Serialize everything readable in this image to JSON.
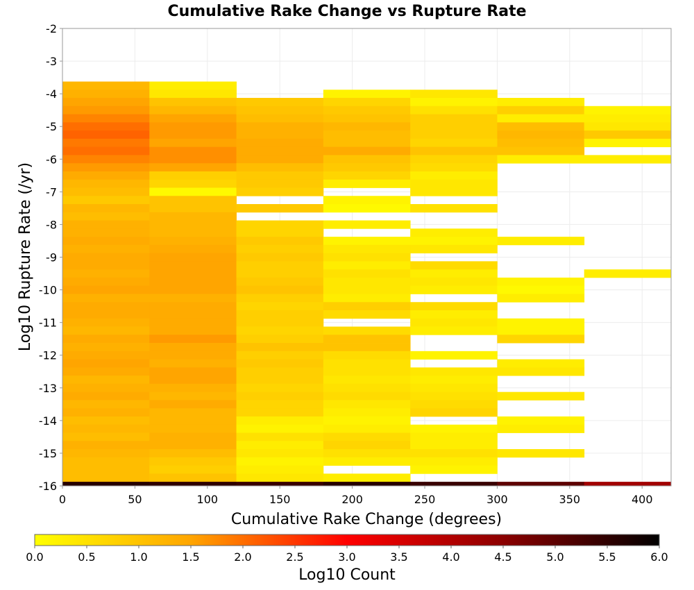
{
  "chart_data": {
    "type": "heatmap",
    "title": "Cumulative Rake Change vs Rupture Rate",
    "xlabel": "Cumulative Rake Change (degrees)",
    "ylabel": "Log10 Rupture Rate (/yr)",
    "xlim": [
      0,
      420
    ],
    "ylim": [
      -16,
      -2
    ],
    "x_ticks": [
      0,
      50,
      100,
      150,
      200,
      250,
      300,
      350,
      400
    ],
    "y_ticks": [
      -2,
      -3,
      -4,
      -5,
      -6,
      -7,
      -8,
      -9,
      -10,
      -11,
      -12,
      -13,
      -14,
      -15,
      -16
    ],
    "colorbar": {
      "label": "Log10 Count",
      "range": [
        0.0,
        6.0
      ],
      "ticks": [
        "0.0",
        "0.5",
        "1.0",
        "1.5",
        "2.0",
        "2.5",
        "3.0",
        "3.5",
        "4.0",
        "4.5",
        "5.0",
        "5.5",
        "6.0"
      ],
      "colors": [
        "#ffff00",
        "#ffa500",
        "#ff0000",
        "#8b0000",
        "#000000"
      ]
    },
    "bin_width_x": 60,
    "bin_height_y": 0.25,
    "grid": true,
    "columns": [
      {
        "x0": 0,
        "cells": [
          [
            -3.75,
            1.2
          ],
          [
            -4.0,
            1.3
          ],
          [
            -4.25,
            1.5
          ],
          [
            -4.5,
            1.6
          ],
          [
            -4.75,
            1.8
          ],
          [
            -5.0,
            2.0
          ],
          [
            -5.25,
            2.1
          ],
          [
            -5.5,
            1.9
          ],
          [
            -5.75,
            2.0
          ],
          [
            -6.0,
            1.8
          ],
          [
            -6.25,
            1.6
          ],
          [
            -6.5,
            1.4
          ],
          [
            -6.75,
            1.2
          ],
          [
            -7.0,
            1.1
          ],
          [
            -7.25,
            0.9
          ],
          [
            -7.5,
            1.2
          ],
          [
            -7.75,
            1.1
          ],
          [
            -8.0,
            1.3
          ],
          [
            -8.25,
            1.3
          ],
          [
            -8.5,
            1.4
          ],
          [
            -8.75,
            1.3
          ],
          [
            -9.0,
            1.4
          ],
          [
            -9.25,
            1.4
          ],
          [
            -9.5,
            1.3
          ],
          [
            -9.75,
            1.4
          ],
          [
            -10.0,
            1.5
          ],
          [
            -10.25,
            1.3
          ],
          [
            -10.5,
            1.4
          ],
          [
            -10.75,
            1.4
          ],
          [
            -11.0,
            1.3
          ],
          [
            -11.25,
            1.2
          ],
          [
            -11.5,
            1.4
          ],
          [
            -11.75,
            1.3
          ],
          [
            -12.0,
            1.4
          ],
          [
            -12.25,
            1.5
          ],
          [
            -12.5,
            1.4
          ],
          [
            -12.75,
            1.2
          ],
          [
            -13.0,
            1.3
          ],
          [
            -13.25,
            1.4
          ],
          [
            -13.5,
            1.2
          ],
          [
            -13.75,
            1.3
          ],
          [
            -14.0,
            1.1
          ],
          [
            -14.25,
            1.2
          ],
          [
            -14.5,
            1.1
          ],
          [
            -14.75,
            1.3
          ],
          [
            -15.0,
            1.2
          ],
          [
            -15.25,
            1.1
          ],
          [
            -15.5,
            1.1
          ],
          [
            -15.75,
            1.1
          ],
          [
            -16.0,
            5.6
          ]
        ]
      },
      {
        "x0": 60,
        "cells": [
          [
            -3.75,
            0.3
          ],
          [
            -4.0,
            0.4
          ],
          [
            -4.25,
            1.0
          ],
          [
            -4.5,
            1.2
          ],
          [
            -4.75,
            1.5
          ],
          [
            -5.0,
            1.6
          ],
          [
            -5.25,
            1.6
          ],
          [
            -5.5,
            1.5
          ],
          [
            -5.75,
            1.7
          ],
          [
            -6.0,
            1.7
          ],
          [
            -6.25,
            1.5
          ],
          [
            -6.5,
            0.8
          ],
          [
            -6.75,
            0.7
          ],
          [
            -7.0,
            0.1
          ],
          [
            -7.25,
            1.0
          ],
          [
            -7.5,
            1.0
          ],
          [
            -7.75,
            1.2
          ],
          [
            -8.0,
            1.2
          ],
          [
            -8.25,
            1.2
          ],
          [
            -8.5,
            1.3
          ],
          [
            -8.75,
            1.4
          ],
          [
            -9.0,
            1.5
          ],
          [
            -9.25,
            1.5
          ],
          [
            -9.5,
            1.5
          ],
          [
            -9.75,
            1.5
          ],
          [
            -10.0,
            1.5
          ],
          [
            -10.25,
            1.3
          ],
          [
            -10.5,
            1.4
          ],
          [
            -10.75,
            1.4
          ],
          [
            -11.0,
            1.4
          ],
          [
            -11.25,
            1.4
          ],
          [
            -11.5,
            1.6
          ],
          [
            -11.75,
            1.4
          ],
          [
            -12.0,
            1.4
          ],
          [
            -12.25,
            1.3
          ],
          [
            -12.5,
            1.5
          ],
          [
            -12.75,
            1.5
          ],
          [
            -13.0,
            1.3
          ],
          [
            -13.25,
            1.2
          ],
          [
            -13.5,
            1.4
          ],
          [
            -13.75,
            1.2
          ],
          [
            -14.0,
            1.2
          ],
          [
            -14.25,
            1.2
          ],
          [
            -14.5,
            1.3
          ],
          [
            -14.75,
            1.3
          ],
          [
            -15.0,
            1.1
          ],
          [
            -15.25,
            0.9
          ],
          [
            -15.5,
            0.8
          ],
          [
            -15.75,
            1.0
          ],
          [
            -16.0,
            5.5
          ]
        ]
      },
      {
        "x0": 120,
        "cells": [
          [
            -4.25,
            0.9
          ],
          [
            -4.5,
            1.0
          ],
          [
            -4.75,
            1.1
          ],
          [
            -5.0,
            1.3
          ],
          [
            -5.25,
            1.3
          ],
          [
            -5.5,
            1.4
          ],
          [
            -5.75,
            1.4
          ],
          [
            -6.0,
            1.4
          ],
          [
            -6.25,
            1.1
          ],
          [
            -6.5,
            0.9
          ],
          [
            -6.75,
            0.9
          ],
          [
            -7.0,
            0.8
          ],
          [
            -7.5,
            0.9
          ],
          [
            -8.0,
            0.7
          ],
          [
            -8.25,
            0.7
          ],
          [
            -8.5,
            0.9
          ],
          [
            -8.75,
            0.8
          ],
          [
            -9.0,
            0.9
          ],
          [
            -9.25,
            0.8
          ],
          [
            -9.5,
            0.8
          ],
          [
            -9.75,
            0.9
          ],
          [
            -10.0,
            1.0
          ],
          [
            -10.25,
            0.8
          ],
          [
            -10.5,
            0.7
          ],
          [
            -10.75,
            0.8
          ],
          [
            -11.0,
            0.8
          ],
          [
            -11.25,
            0.7
          ],
          [
            -11.5,
            0.8
          ],
          [
            -11.75,
            1.0
          ],
          [
            -12.0,
            0.8
          ],
          [
            -12.25,
            0.9
          ],
          [
            -12.5,
            0.8
          ],
          [
            -12.75,
            0.8
          ],
          [
            -13.0,
            0.7
          ],
          [
            -13.25,
            0.8
          ],
          [
            -13.5,
            0.7
          ],
          [
            -13.75,
            0.7
          ],
          [
            -14.0,
            0.3
          ],
          [
            -14.25,
            0.2
          ],
          [
            -14.5,
            0.5
          ],
          [
            -14.75,
            0.3
          ],
          [
            -15.0,
            0.4
          ],
          [
            -15.25,
            0.2
          ],
          [
            -15.5,
            0.3
          ],
          [
            -15.75,
            0.4
          ],
          [
            -16.0,
            5.4
          ]
        ]
      },
      {
        "x0": 180,
        "cells": [
          [
            -4.0,
            0.2
          ],
          [
            -4.25,
            0.7
          ],
          [
            -4.5,
            0.9
          ],
          [
            -4.75,
            1.0
          ],
          [
            -5.0,
            1.2
          ],
          [
            -5.25,
            1.1
          ],
          [
            -5.5,
            1.1
          ],
          [
            -5.75,
            1.4
          ],
          [
            -6.0,
            1.0
          ],
          [
            -6.25,
            0.9
          ],
          [
            -6.5,
            0.7
          ],
          [
            -6.75,
            0.3
          ],
          [
            -7.25,
            0.2
          ],
          [
            -7.5,
            0.1
          ],
          [
            -8.0,
            0.3
          ],
          [
            -8.5,
            0.2
          ],
          [
            -8.75,
            0.4
          ],
          [
            -9.0,
            0.5
          ],
          [
            -9.25,
            0.3
          ],
          [
            -9.5,
            0.5
          ],
          [
            -9.75,
            0.4
          ],
          [
            -10.0,
            0.4
          ],
          [
            -10.25,
            0.3
          ],
          [
            -10.5,
            0.8
          ],
          [
            -10.75,
            0.6
          ],
          [
            -11.25,
            0.6
          ],
          [
            -11.5,
            1.0
          ],
          [
            -11.75,
            1.0
          ],
          [
            -12.0,
            0.6
          ],
          [
            -12.25,
            0.5
          ],
          [
            -12.5,
            0.5
          ],
          [
            -12.75,
            0.4
          ],
          [
            -13.0,
            0.5
          ],
          [
            -13.25,
            0.6
          ],
          [
            -13.5,
            0.4
          ],
          [
            -13.75,
            0.3
          ],
          [
            -14.0,
            0.2
          ],
          [
            -14.25,
            0.3
          ],
          [
            -14.5,
            0.6
          ],
          [
            -14.75,
            0.7
          ],
          [
            -15.0,
            0.5
          ],
          [
            -15.25,
            0.3
          ],
          [
            -15.75,
            0.3
          ],
          [
            -16.0,
            5.6
          ]
        ]
      },
      {
        "x0": 240,
        "cells": [
          [
            -4.0,
            0.4
          ],
          [
            -4.25,
            0.2
          ],
          [
            -4.5,
            0.5
          ],
          [
            -4.75,
            0.8
          ],
          [
            -5.0,
            0.8
          ],
          [
            -5.25,
            0.8
          ],
          [
            -5.5,
            0.7
          ],
          [
            -5.75,
            1.0
          ],
          [
            -6.0,
            0.7
          ],
          [
            -6.25,
            0.6
          ],
          [
            -6.5,
            0.3
          ],
          [
            -6.75,
            0.4
          ],
          [
            -7.0,
            0.4
          ],
          [
            -7.5,
            0.5
          ],
          [
            -8.25,
            0.3
          ],
          [
            -8.5,
            0.2
          ],
          [
            -8.75,
            0.4
          ],
          [
            -9.25,
            0.6
          ],
          [
            -9.5,
            0.3
          ],
          [
            -9.75,
            0.4
          ],
          [
            -10.0,
            0.3
          ],
          [
            -10.5,
            0.6
          ],
          [
            -10.75,
            0.3
          ],
          [
            -11.0,
            0.4
          ],
          [
            -11.25,
            0.3
          ],
          [
            -12.0,
            0.2
          ],
          [
            -12.5,
            0.4
          ],
          [
            -12.75,
            0.3
          ],
          [
            -13.0,
            0.4
          ],
          [
            -13.25,
            0.5
          ],
          [
            -13.5,
            0.6
          ],
          [
            -13.75,
            0.7
          ],
          [
            -14.25,
            0.2
          ],
          [
            -14.5,
            0.3
          ],
          [
            -14.75,
            0.3
          ],
          [
            -15.0,
            0.5
          ],
          [
            -15.25,
            0.3
          ],
          [
            -15.5,
            0.2
          ],
          [
            -16.0,
            5.4
          ]
        ]
      },
      {
        "x0": 300,
        "cells": [
          [
            -4.25,
            0.3
          ],
          [
            -4.5,
            0.8
          ],
          [
            -4.75,
            0.3
          ],
          [
            -5.0,
            1.1
          ],
          [
            -5.25,
            1.2
          ],
          [
            -5.5,
            1.1
          ],
          [
            -5.75,
            1.0
          ],
          [
            -6.0,
            0.3
          ],
          [
            -8.5,
            0.3
          ],
          [
            -9.75,
            0.2
          ],
          [
            -10.0,
            0.1
          ],
          [
            -10.25,
            0.3
          ],
          [
            -11.0,
            0.2
          ],
          [
            -11.25,
            0.2
          ],
          [
            -11.5,
            0.7
          ],
          [
            -12.25,
            0.3
          ],
          [
            -12.5,
            0.4
          ],
          [
            -13.25,
            0.4
          ],
          [
            -14.0,
            0.2
          ],
          [
            -14.25,
            0.3
          ],
          [
            -15.0,
            0.4
          ],
          [
            -16.0,
            5.0
          ]
        ]
      },
      {
        "x0": 360,
        "cells": [
          [
            -4.5,
            0.2
          ],
          [
            -4.75,
            0.3
          ],
          [
            -5.0,
            0.4
          ],
          [
            -5.25,
            0.9
          ],
          [
            -5.5,
            0.2
          ],
          [
            -6.0,
            0.3
          ],
          [
            -9.5,
            0.3
          ],
          [
            -16.0,
            4.2
          ]
        ]
      }
    ]
  }
}
